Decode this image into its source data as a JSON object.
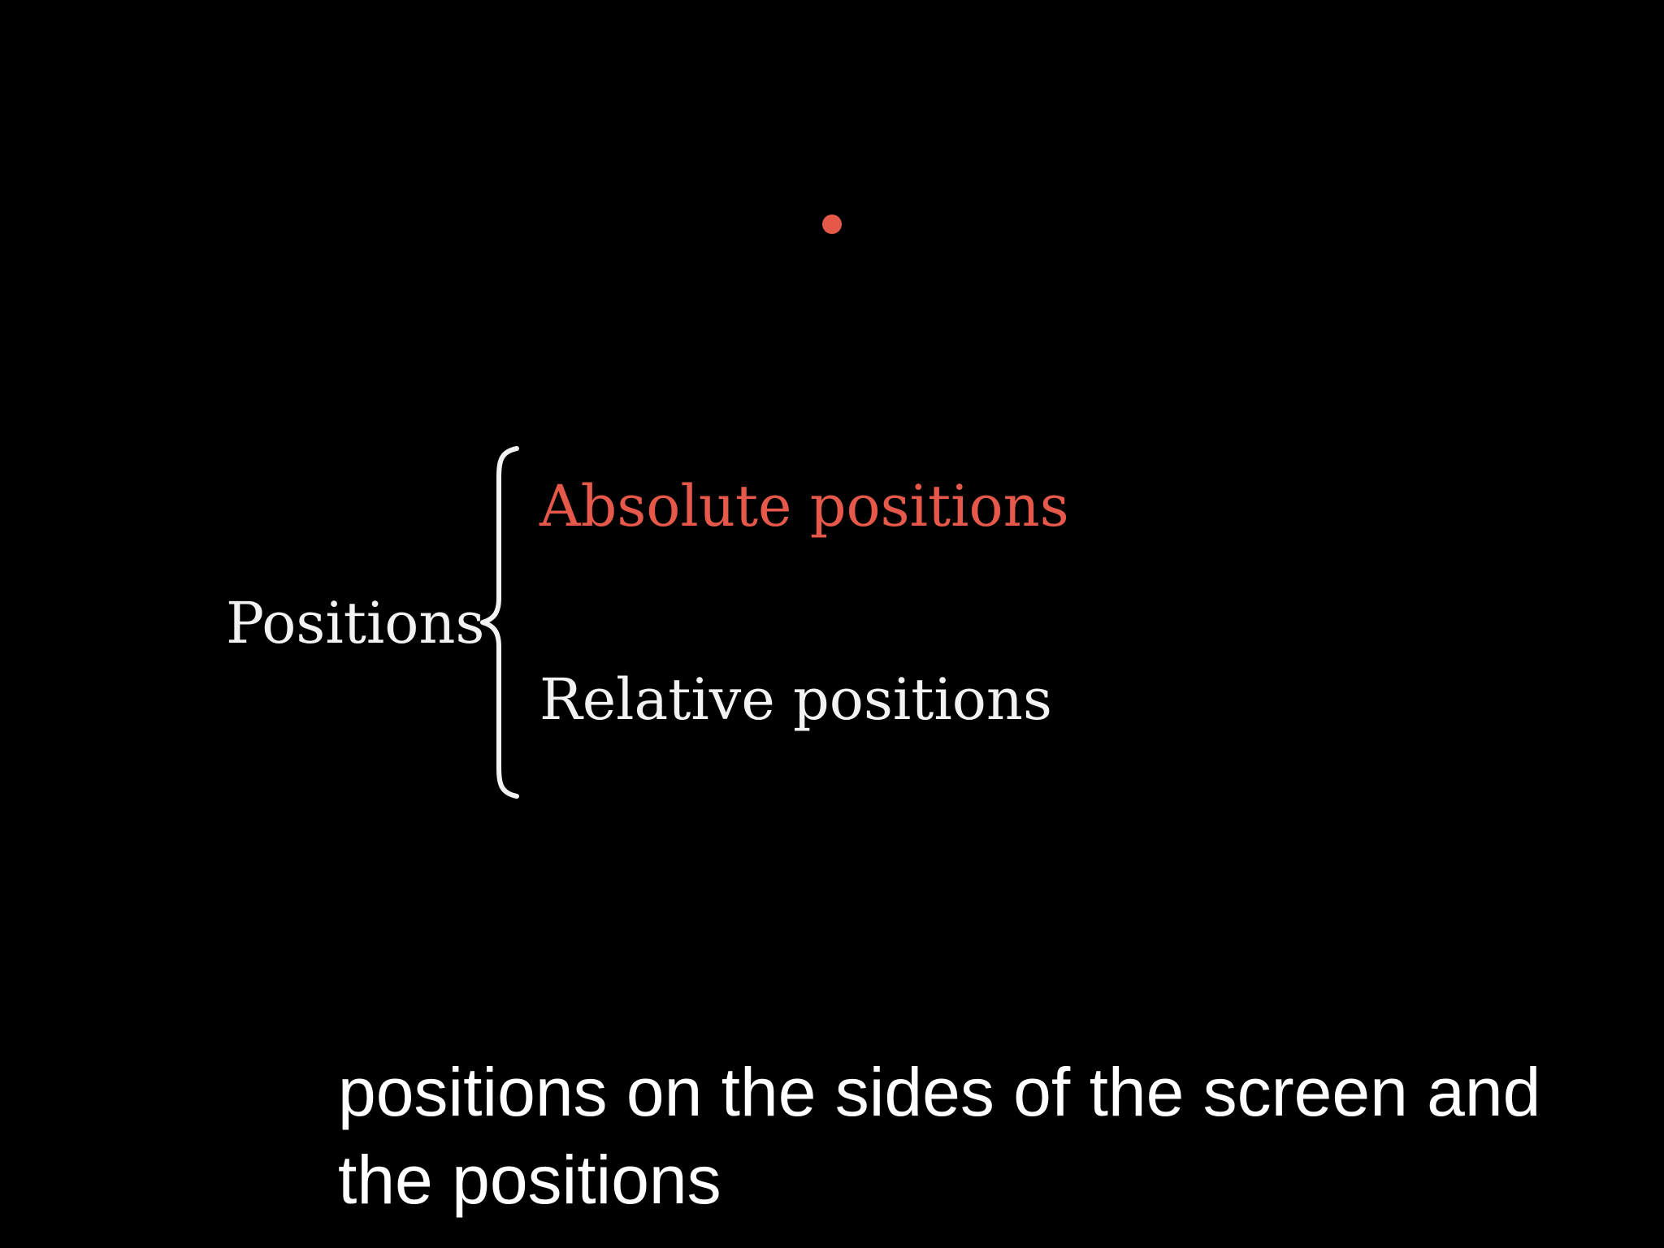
{
  "diagram": {
    "root_label": "Positions",
    "branches": [
      {
        "label": "Absolute positions",
        "color": "#e5584a"
      },
      {
        "label": "Relative positions",
        "color": "#f2f2f2"
      }
    ],
    "marker_color": "#e5584a"
  },
  "captions": {
    "subtitle_line1": "positions on the sides of the screen and",
    "subtitle_line2": "the positions"
  }
}
